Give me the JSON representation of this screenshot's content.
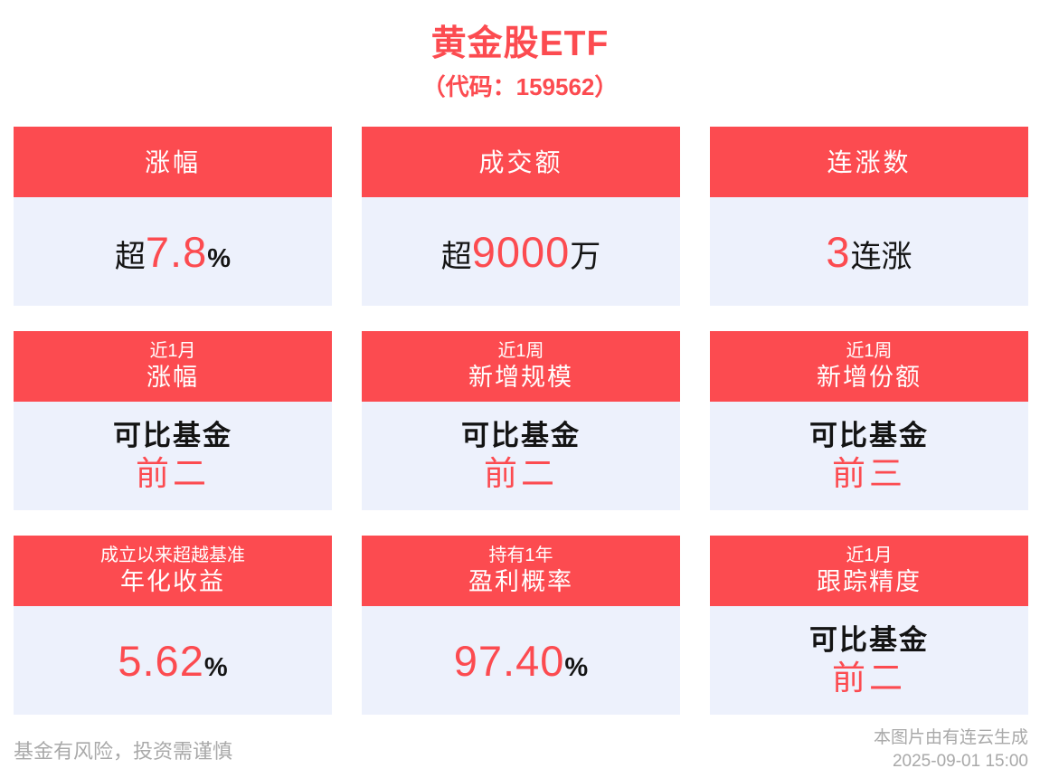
{
  "page": {
    "title": "黄金股ETF",
    "subtitle": "（代码：159562）"
  },
  "colors": {
    "accent": "#fc4b50",
    "card_bg": "#edf1fc",
    "text_dark": "#141414",
    "muted": "#a9a9a9",
    "header_text": "#ffffff",
    "page_bg": "#ffffff"
  },
  "cards": [
    {
      "header": "涨幅",
      "value": {
        "pre": "超",
        "big": "7.8",
        "post": "%"
      }
    },
    {
      "header": "成交额",
      "value": {
        "pre": "超",
        "big": "9000",
        "post": "万"
      }
    },
    {
      "header": "连涨数",
      "value": {
        "pre": "",
        "big": "3",
        "post": "连涨"
      }
    },
    {
      "tag": "近1月",
      "header": "涨幅",
      "rank": {
        "line1": "可比基金",
        "line2": "前二"
      }
    },
    {
      "tag": "近1周",
      "header": "新增规模",
      "rank": {
        "line1": "可比基金",
        "line2": "前二"
      }
    },
    {
      "tag": "近1周",
      "header": "新增份额",
      "rank": {
        "line1": "可比基金",
        "line2": "前三"
      }
    },
    {
      "tag": "成立以来超越基准",
      "header": "年化收益",
      "value": {
        "pre": "",
        "big": "5.62",
        "post": "%"
      }
    },
    {
      "tag": "持有1年",
      "header": "盈利概率",
      "value": {
        "pre": "",
        "big": "97.40",
        "post": "%"
      }
    },
    {
      "tag": "近1月",
      "header": "跟踪精度",
      "rank": {
        "line1": "可比基金",
        "line2": "前二"
      }
    }
  ],
  "footer": {
    "disclaimer": "基金有风险，投资需谨慎",
    "source": "本图片由有连云生成",
    "timestamp": "2025-09-01 15:00"
  }
}
